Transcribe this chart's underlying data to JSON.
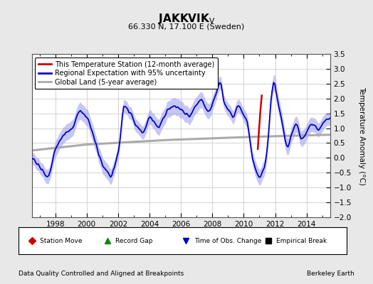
{
  "title": "JAKKVIK",
  "title_sub": "V",
  "subtitle": "66.330 N, 17.100 E (Sweden)",
  "ylabel": "Temperature Anomaly (°C)",
  "xlabel_years": [
    1998,
    2000,
    2002,
    2004,
    2006,
    2008,
    2010,
    2012,
    2014
  ],
  "ylim": [
    -2.0,
    3.5
  ],
  "yticks": [
    -2.0,
    -1.5,
    -1.0,
    -0.5,
    0.0,
    0.5,
    1.0,
    1.5,
    2.0,
    2.5,
    3.0,
    3.5
  ],
  "xlim_start": 1996.5,
  "xlim_end": 2015.5,
  "background_color": "#e8e8e8",
  "plot_bg_color": "#ffffff",
  "regional_color": "#0000cc",
  "regional_fill": "#9999ee",
  "station_color": "#cc0000",
  "global_color": "#aaaaaa",
  "footer_left": "Data Quality Controlled and Aligned at Breakpoints",
  "footer_right": "Berkeley Earth",
  "legend_labels": [
    "This Temperature Station (12-month average)",
    "Regional Expectation with 95% uncertainty",
    "Global Land (5-year average)"
  ],
  "legend_colors": [
    "#cc0000",
    "#0000cc",
    "#aaaaaa"
  ],
  "marker_legend": [
    {
      "label": "Station Move",
      "marker": "D",
      "color": "#cc0000"
    },
    {
      "label": "Record Gap",
      "marker": "^",
      "color": "#008800"
    },
    {
      "label": "Time of Obs. Change",
      "marker": "v",
      "color": "#0000cc"
    },
    {
      "label": "Empirical Break",
      "marker": "s",
      "color": "#000000"
    }
  ]
}
